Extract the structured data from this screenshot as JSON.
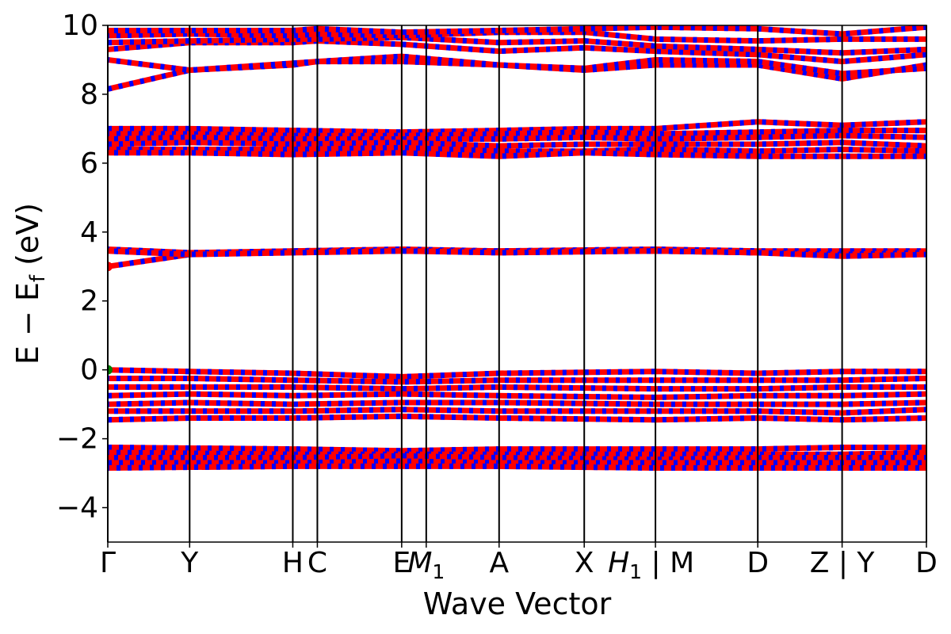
{
  "chart_data": {
    "type": "line",
    "title": "",
    "xlabel": "Wave Vector",
    "ylabel_main": "E − E",
    "ylabel_sub": "f",
    "ylabel_unit": " (eV)",
    "ylim": [
      -5,
      10
    ],
    "yticks": [
      -4,
      -2,
      0,
      2,
      4,
      6,
      8,
      10
    ],
    "ytick_labels": [
      "−4",
      "−2",
      "0",
      "2",
      "4",
      "6",
      "8",
      "10"
    ],
    "kpath_breaks": [
      0,
      0.1,
      0.226,
      0.256,
      0.359,
      0.389,
      0.478,
      0.582,
      0.669,
      0.794,
      0.897,
      1.0
    ],
    "kpath_labels": [
      {
        "text": "Γ",
        "x": 0
      },
      {
        "text": "Y",
        "x": 0.1
      },
      {
        "text": "H",
        "x": 0.226
      },
      {
        "text": "C",
        "x": 0.256
      },
      {
        "text": "E",
        "x": 0.359
      },
      {
        "text": "M",
        "sub": "1",
        "italic": true,
        "x": 0.389
      },
      {
        "text": "A",
        "x": 0.478
      },
      {
        "text": "X",
        "x": 0.582
      },
      {
        "text": "H",
        "sub": "1",
        "italic": true,
        "suffix": " | M",
        "x": 0.669
      },
      {
        "text": "D",
        "x": 0.794
      },
      {
        "text": "Z | Y",
        "x": 0.897
      },
      {
        "text": "D",
        "x": 1.0
      }
    ],
    "band_groups": [
      {
        "name": "valence-low",
        "bands": [
          {
            "x": [
              0,
              0.226,
              0.359,
              0.478,
              0.669,
              0.794,
              0.897,
              1.0
            ],
            "y": [
              -2.25,
              -2.3,
              -2.35,
              -2.3,
              -2.3,
              -2.3,
              -2.25,
              -2.25
            ]
          },
          {
            "x": [
              0,
              0.226,
              0.359,
              0.478,
              0.669,
              0.794,
              0.897,
              1.0
            ],
            "y": [
              -2.4,
              -2.45,
              -2.45,
              -2.45,
              -2.45,
              -2.45,
              -2.45,
              -2.4
            ]
          },
          {
            "x": [
              0,
              0.226,
              0.359,
              0.478,
              0.669,
              0.794,
              0.897,
              1.0
            ],
            "y": [
              -2.55,
              -2.55,
              -2.5,
              -2.55,
              -2.6,
              -2.55,
              -2.55,
              -2.55
            ]
          },
          {
            "x": [
              0,
              0.226,
              0.359,
              0.478,
              0.669,
              0.794,
              0.897,
              1.0
            ],
            "y": [
              -2.7,
              -2.7,
              -2.65,
              -2.7,
              -2.7,
              -2.7,
              -2.7,
              -2.7
            ]
          },
          {
            "x": [
              0,
              0.226,
              0.359,
              0.478,
              0.669,
              0.794,
              0.897,
              1.0
            ],
            "y": [
              -2.85,
              -2.8,
              -2.8,
              -2.8,
              -2.85,
              -2.85,
              -2.85,
              -2.85
            ]
          }
        ]
      },
      {
        "name": "valence-top",
        "bands": [
          {
            "x": [
              0,
              0.1,
              0.226,
              0.359,
              0.478,
              0.669,
              0.794,
              0.897,
              1.0
            ],
            "y": [
              0.0,
              -0.05,
              -0.1,
              -0.2,
              -0.1,
              -0.05,
              -0.1,
              -0.05,
              -0.05
            ]
          },
          {
            "x": [
              0,
              0.1,
              0.226,
              0.359,
              0.478,
              0.669,
              0.794,
              0.897,
              1.0
            ],
            "y": [
              -0.25,
              -0.25,
              -0.3,
              -0.35,
              -0.3,
              -0.3,
              -0.3,
              -0.3,
              -0.25
            ]
          },
          {
            "x": [
              0,
              0.1,
              0.226,
              0.359,
              0.478,
              0.669,
              0.794,
              0.897,
              1.0
            ],
            "y": [
              -0.5,
              -0.5,
              -0.5,
              -0.55,
              -0.5,
              -0.55,
              -0.55,
              -0.5,
              -0.5
            ]
          },
          {
            "x": [
              0,
              0.1,
              0.226,
              0.359,
              0.478,
              0.669,
              0.794,
              0.897,
              1.0
            ],
            "y": [
              -0.75,
              -0.7,
              -0.75,
              -0.7,
              -0.75,
              -0.8,
              -0.75,
              -0.75,
              -0.7
            ]
          },
          {
            "x": [
              0,
              0.1,
              0.226,
              0.359,
              0.478,
              0.669,
              0.794,
              0.897,
              1.0
            ],
            "y": [
              -1.0,
              -0.95,
              -1.0,
              -0.95,
              -0.95,
              -1.0,
              -1.0,
              -1.0,
              -0.95
            ]
          },
          {
            "x": [
              0,
              0.1,
              0.226,
              0.359,
              0.478,
              0.669,
              0.794,
              0.897,
              1.0
            ],
            "y": [
              -1.2,
              -1.2,
              -1.2,
              -1.15,
              -1.2,
              -1.2,
              -1.2,
              -1.25,
              -1.15
            ]
          },
          {
            "x": [
              0,
              0.1,
              0.226,
              0.359,
              0.478,
              0.669,
              0.794,
              0.897,
              1.0
            ],
            "y": [
              -1.45,
              -1.4,
              -1.4,
              -1.35,
              -1.4,
              -1.45,
              -1.4,
              -1.45,
              -1.4
            ]
          }
        ]
      },
      {
        "name": "conduction-mid",
        "bands": [
          {
            "x": [
              0,
              0.1,
              0.226,
              0.359,
              0.478,
              0.669,
              0.794,
              0.897,
              1.0
            ],
            "y": [
              3.0,
              3.35,
              3.45,
              3.5,
              3.45,
              3.5,
              3.45,
              3.45,
              3.45
            ]
          },
          {
            "x": [
              0,
              0.1,
              0.226,
              0.359,
              0.478,
              0.669,
              0.794,
              0.897,
              1.0
            ],
            "y": [
              3.5,
              3.4,
              3.45,
              3.45,
              3.45,
              3.45,
              3.4,
              3.35,
              3.4
            ]
          },
          {
            "x": [
              0,
              0.1,
              0.226,
              0.359,
              0.478,
              0.669,
              0.794,
              0.897,
              1.0
            ],
            "y": [
              3.45,
              3.35,
              3.4,
              3.45,
              3.4,
              3.45,
              3.4,
              3.3,
              3.35
            ]
          }
        ]
      },
      {
        "name": "conduction-upper",
        "bands": [
          {
            "x": [
              0,
              0.1,
              0.226,
              0.359,
              0.478,
              0.582,
              0.669,
              0.794,
              0.897,
              1.0
            ],
            "y": [
              7.0,
              7.0,
              6.95,
              6.9,
              6.95,
              7.0,
              7.0,
              7.2,
              7.1,
              7.2
            ]
          },
          {
            "x": [
              0,
              0.1,
              0.226,
              0.359,
              0.478,
              0.582,
              0.669,
              0.794,
              0.897,
              1.0
            ],
            "y": [
              6.85,
              6.85,
              6.8,
              6.8,
              6.85,
              6.9,
              6.85,
              6.9,
              6.95,
              6.95
            ]
          },
          {
            "x": [
              0,
              0.1,
              0.226,
              0.359,
              0.478,
              0.582,
              0.669,
              0.794,
              0.897,
              1.0
            ],
            "y": [
              6.7,
              6.75,
              6.7,
              6.7,
              6.7,
              6.75,
              6.7,
              6.75,
              6.8,
              6.75
            ]
          },
          {
            "x": [
              0,
              0.1,
              0.226,
              0.359,
              0.478,
              0.582,
              0.669,
              0.794,
              0.897,
              1.0
            ],
            "y": [
              6.55,
              6.6,
              6.55,
              6.6,
              6.5,
              6.55,
              6.55,
              6.55,
              6.6,
              6.5
            ]
          },
          {
            "x": [
              0,
              0.1,
              0.226,
              0.359,
              0.478,
              0.582,
              0.669,
              0.794,
              0.897,
              1.0
            ],
            "y": [
              6.4,
              6.4,
              6.4,
              6.45,
              6.35,
              6.35,
              6.4,
              6.35,
              6.4,
              6.35
            ]
          },
          {
            "x": [
              0,
              0.1,
              0.226,
              0.359,
              0.478,
              0.582,
              0.669,
              0.794,
              0.897,
              1.0
            ],
            "y": [
              6.3,
              6.3,
              6.25,
              6.3,
              6.2,
              6.3,
              6.25,
              6.2,
              6.2,
              6.2
            ]
          }
        ]
      },
      {
        "name": "conduction-top",
        "bands": [
          {
            "x": [
              0,
              0.1,
              0.226,
              0.256,
              0.359,
              0.478,
              0.582,
              0.669,
              0.794,
              0.897,
              1.0
            ],
            "y": [
              8.15,
              8.7,
              8.85,
              8.95,
              9.1,
              8.85,
              8.7,
              8.85,
              8.85,
              8.45,
              8.85
            ]
          },
          {
            "x": [
              0,
              0.1,
              0.226,
              0.256,
              0.359,
              0.478,
              0.582,
              0.669,
              0.794,
              0.897,
              1.0
            ],
            "y": [
              9.0,
              8.7,
              8.9,
              8.95,
              8.95,
              8.85,
              8.75,
              9.0,
              8.95,
              8.6,
              8.75
            ]
          },
          {
            "x": [
              0,
              0.1,
              0.226,
              0.256,
              0.359,
              0.478,
              0.582,
              0.669,
              0.794,
              0.897,
              1.0
            ],
            "y": [
              9.3,
              9.5,
              9.5,
              9.55,
              9.45,
              9.25,
              9.35,
              9.25,
              9.15,
              8.95,
              9.15
            ]
          },
          {
            "x": [
              0,
              0.1,
              0.226,
              0.256,
              0.359,
              0.478,
              0.582,
              0.669,
              0.794,
              0.897,
              1.0
            ],
            "y": [
              9.5,
              9.55,
              9.6,
              9.6,
              9.65,
              9.5,
              9.55,
              9.4,
              9.3,
              9.2,
              9.3
            ]
          },
          {
            "x": [
              0,
              0.1,
              0.226,
              0.256,
              0.359,
              0.478,
              0.582,
              0.669,
              0.794,
              0.897,
              1.0
            ],
            "y": [
              9.7,
              9.75,
              9.7,
              9.75,
              9.7,
              9.8,
              9.8,
              9.6,
              9.55,
              9.6,
              9.6
            ]
          },
          {
            "x": [
              0,
              0.1,
              0.226,
              0.256,
              0.359,
              0.478,
              0.582,
              0.669,
              0.794,
              0.897,
              1.0
            ],
            "y": [
              9.85,
              9.85,
              9.85,
              9.9,
              9.8,
              9.85,
              9.9,
              9.95,
              9.9,
              9.75,
              9.95
            ]
          }
        ]
      }
    ],
    "markers": [
      {
        "name": "band-edge-marker-red",
        "x": 0,
        "y": 3.0,
        "color": "#ff0000"
      },
      {
        "name": "band-edge-marker-green",
        "x": 0,
        "y": 0.0,
        "color": "#008000"
      }
    ],
    "colors": {
      "band_primary": "#ff0000",
      "band_secondary": "#0000ff",
      "divider": "#000000"
    },
    "grid": false,
    "legend": "none"
  }
}
